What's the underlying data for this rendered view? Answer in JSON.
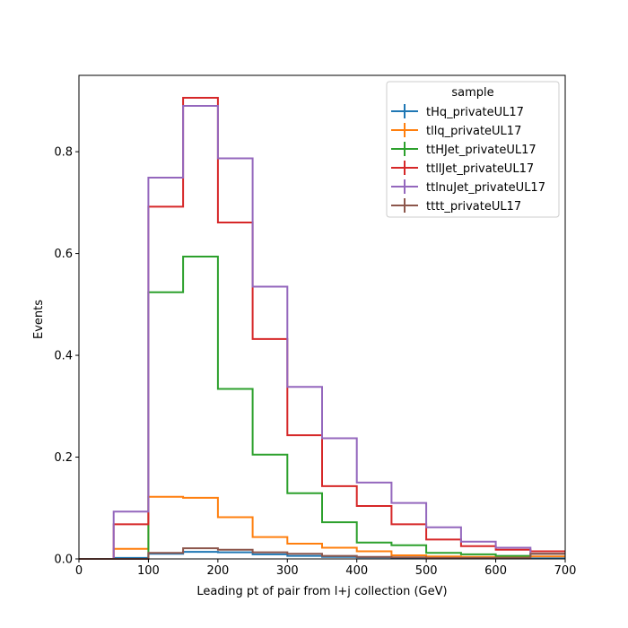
{
  "chart_data": {
    "type": "line",
    "drawstyle": "step",
    "xlabel": "Leading pt of pair from l+j collection (GeV)",
    "ylabel": "Events",
    "xlim": [
      0,
      700
    ],
    "ylim": [
      0,
      0.95
    ],
    "xticks": [
      0,
      100,
      200,
      300,
      400,
      500,
      600,
      700
    ],
    "yticks": [
      0.0,
      0.2,
      0.4,
      0.6,
      0.8
    ],
    "bin_edges": [
      0,
      50,
      100,
      150,
      200,
      250,
      300,
      350,
      400,
      450,
      500,
      550,
      600,
      650,
      700
    ],
    "legend": {
      "title": "sample",
      "position": "top-right"
    },
    "grid": false,
    "series": [
      {
        "name": "tHq_privateUL17",
        "color": "#1f77b4",
        "values": [
          0.0,
          0.002,
          0.01,
          0.014,
          0.013,
          0.009,
          0.006,
          0.004,
          0.003,
          0.002,
          0.001,
          0.001,
          0.001,
          0.001
        ]
      },
      {
        "name": "tllq_privateUL17",
        "color": "#ff7f0e",
        "values": [
          0.0,
          0.02,
          0.122,
          0.12,
          0.082,
          0.043,
          0.03,
          0.022,
          0.015,
          0.007,
          0.005,
          0.004,
          0.003,
          0.005
        ]
      },
      {
        "name": "ttHJet_privateUL17",
        "color": "#2ca02c",
        "values": [
          0.0,
          0.0,
          0.524,
          0.594,
          0.334,
          0.205,
          0.129,
          0.072,
          0.032,
          0.027,
          0.012,
          0.009,
          0.006,
          0.01
        ]
      },
      {
        "name": "ttllJet_privateUL17",
        "color": "#d62728",
        "values": [
          0.0,
          0.068,
          0.692,
          0.906,
          0.661,
          0.432,
          0.243,
          0.143,
          0.104,
          0.068,
          0.038,
          0.025,
          0.018,
          0.015
        ]
      },
      {
        "name": "ttlnuJet_privateUL17",
        "color": "#9467bd",
        "values": [
          0.0,
          0.093,
          0.749,
          0.89,
          0.787,
          0.535,
          0.338,
          0.237,
          0.15,
          0.11,
          0.062,
          0.034,
          0.022,
          0.01
        ]
      },
      {
        "name": "tttt_privateUL17",
        "color": "#8c564b",
        "values": [
          0.0,
          0.0,
          0.012,
          0.021,
          0.018,
          0.013,
          0.01,
          0.006,
          0.004,
          0.003,
          0.002,
          0.002,
          0.002,
          0.01
        ]
      }
    ]
  }
}
